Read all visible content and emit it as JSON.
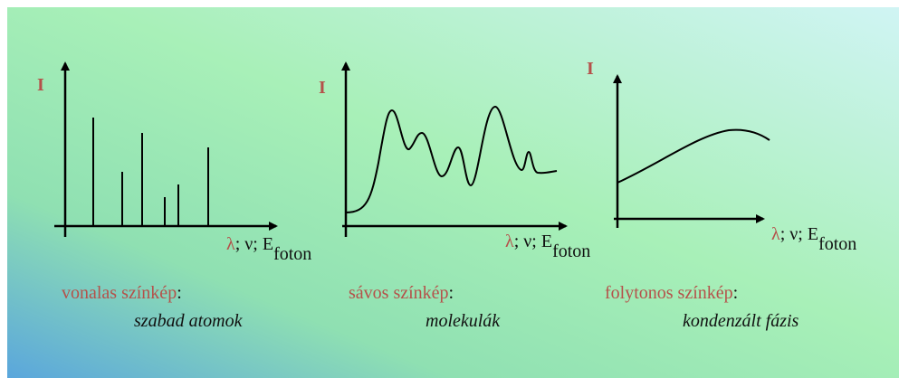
{
  "panels": [
    {
      "axis_y": "I",
      "axis_x_symbol": "λ",
      "axis_x_rest": "; ν; E",
      "axis_x_sub": "foton",
      "label": "vonalas színkép",
      "label_suffix": ":",
      "description": "szabad atomok"
    },
    {
      "axis_y": "I",
      "axis_x_symbol": "λ",
      "axis_x_rest": "; ν; E",
      "axis_x_sub": "foton",
      "label": "sávos színkép",
      "label_suffix": ":",
      "description": "molekulák"
    },
    {
      "axis_y": "I",
      "axis_x_symbol": "λ",
      "axis_x_rest": "; ν; E",
      "axis_x_sub": "foton",
      "label": "folytonos színkép",
      "label_suffix": ":",
      "description": "kondenzált fázis"
    }
  ]
}
